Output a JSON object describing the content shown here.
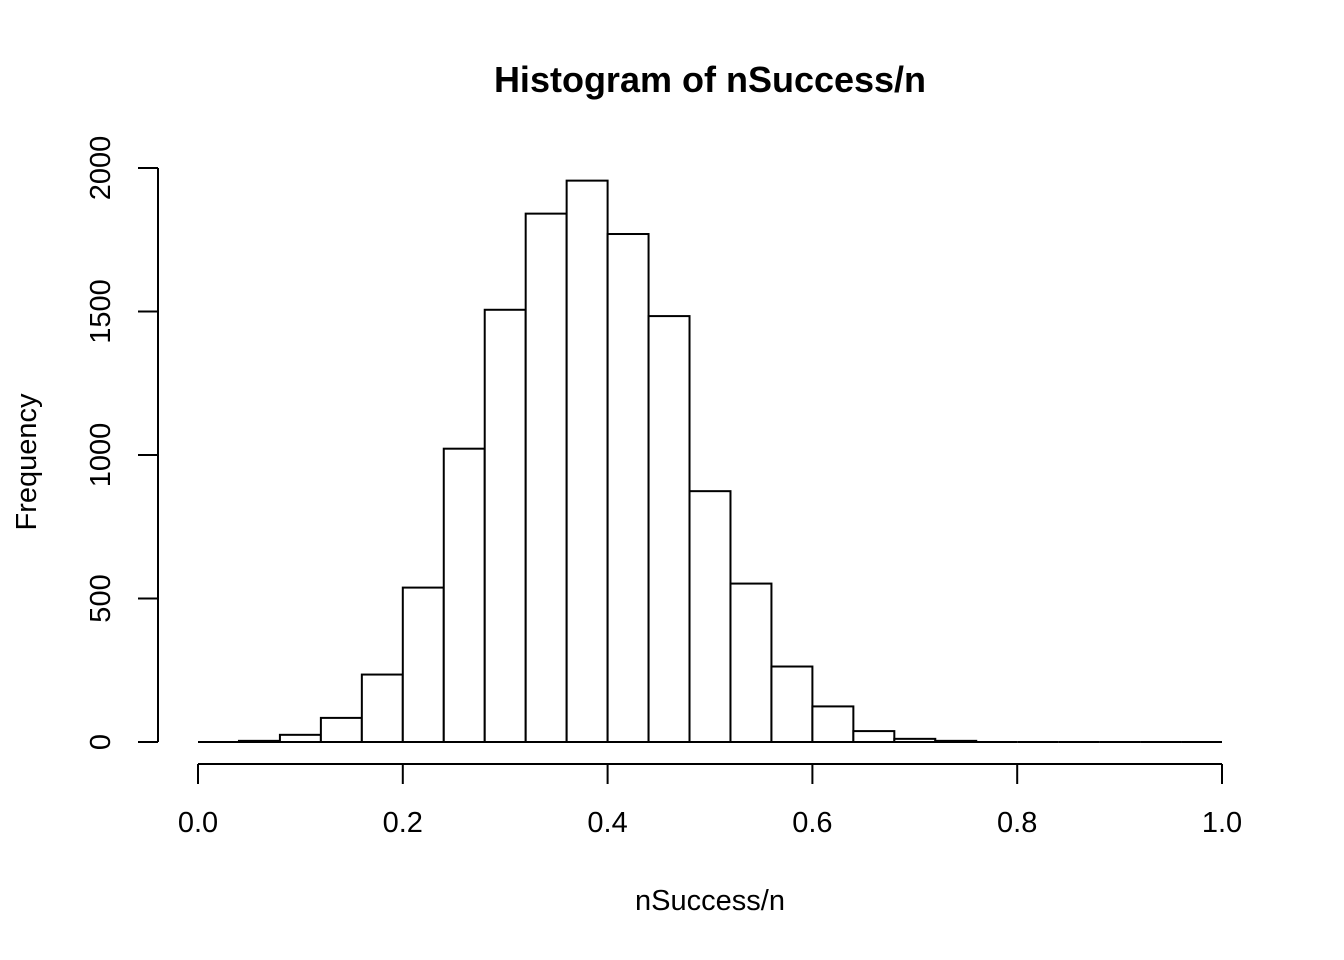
{
  "chart_data": {
    "type": "bar",
    "title": "Histogram of nSuccess/n",
    "xlabel": "nSuccess/n",
    "ylabel": "Frequency",
    "xlim": [
      0,
      1
    ],
    "ylim": [
      0,
      2000
    ],
    "xticks": [
      "0.0",
      "0.2",
      "0.4",
      "0.6",
      "0.8",
      "1.0"
    ],
    "yticks": [
      "0",
      "500",
      "1000",
      "1500",
      "2000"
    ],
    "grid": false,
    "bin_width": 0.04,
    "bins": [
      {
        "x0": 0.0,
        "x1": 0.04,
        "count": 0
      },
      {
        "x0": 0.04,
        "x1": 0.08,
        "count": 4
      },
      {
        "x0": 0.08,
        "x1": 0.12,
        "count": 25
      },
      {
        "x0": 0.12,
        "x1": 0.16,
        "count": 84
      },
      {
        "x0": 0.16,
        "x1": 0.2,
        "count": 235
      },
      {
        "x0": 0.2,
        "x1": 0.24,
        "count": 538
      },
      {
        "x0": 0.24,
        "x1": 0.28,
        "count": 1022
      },
      {
        "x0": 0.28,
        "x1": 0.32,
        "count": 1506
      },
      {
        "x0": 0.32,
        "x1": 0.36,
        "count": 1841
      },
      {
        "x0": 0.36,
        "x1": 0.4,
        "count": 1956
      },
      {
        "x0": 0.4,
        "x1": 0.44,
        "count": 1770
      },
      {
        "x0": 0.44,
        "x1": 0.48,
        "count": 1484
      },
      {
        "x0": 0.48,
        "x1": 0.52,
        "count": 874
      },
      {
        "x0": 0.52,
        "x1": 0.56,
        "count": 552
      },
      {
        "x0": 0.56,
        "x1": 0.6,
        "count": 263
      },
      {
        "x0": 0.6,
        "x1": 0.64,
        "count": 124
      },
      {
        "x0": 0.64,
        "x1": 0.68,
        "count": 38
      },
      {
        "x0": 0.68,
        "x1": 0.72,
        "count": 11
      },
      {
        "x0": 0.72,
        "x1": 0.76,
        "count": 4
      },
      {
        "x0": 0.76,
        "x1": 0.8,
        "count": 0
      },
      {
        "x0": 0.8,
        "x1": 0.84,
        "count": 0
      },
      {
        "x0": 0.84,
        "x1": 0.88,
        "count": 0
      },
      {
        "x0": 0.88,
        "x1": 0.92,
        "count": 0
      },
      {
        "x0": 0.92,
        "x1": 0.96,
        "count": 0
      },
      {
        "x0": 0.96,
        "x1": 1.0,
        "count": 0
      }
    ]
  }
}
